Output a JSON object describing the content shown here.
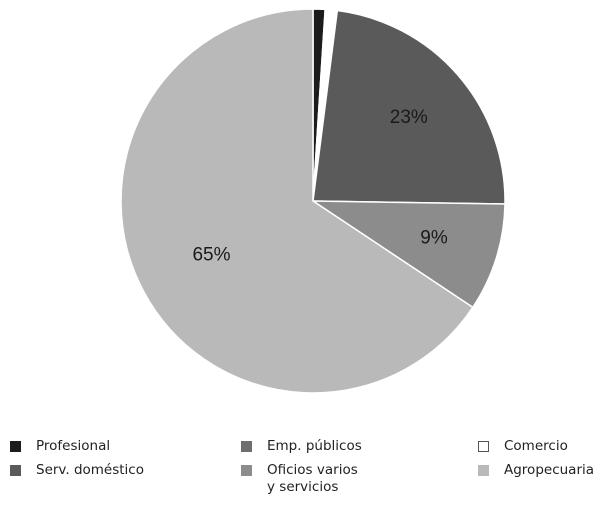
{
  "chart_data": {
    "type": "pie",
    "slices": [
      {
        "name": "Profesional",
        "value": 1,
        "color": "#1c1c1c",
        "label": ""
      },
      {
        "name": "Comercio",
        "value": 1,
        "color": "#ffffff",
        "label": ""
      },
      {
        "name": "Serv. doméstico",
        "value": 23,
        "color": "#5a5a5a",
        "label": "23%"
      },
      {
        "name": "Oficios varios\ny servicios",
        "value": 9,
        "color": "#8c8c8c",
        "label": "9%"
      },
      {
        "name": "Agropecuaria",
        "value": 65,
        "color": "#b9b9b9",
        "label": "65%"
      }
    ],
    "legend": [
      {
        "name": "Profesional",
        "color": "#1c1c1c"
      },
      {
        "name": "Emp. públicos",
        "color": "#6e6e6e"
      },
      {
        "name": "Comercio",
        "color": "#ffffff"
      },
      {
        "name": "Serv. doméstico",
        "color": "#5a5a5a"
      },
      {
        "name": "Oficios varios\ny servicios",
        "color": "#8c8c8c"
      },
      {
        "name": "Agropecuaria",
        "color": "#b9b9b9"
      }
    ],
    "legend_position": "bottom"
  }
}
